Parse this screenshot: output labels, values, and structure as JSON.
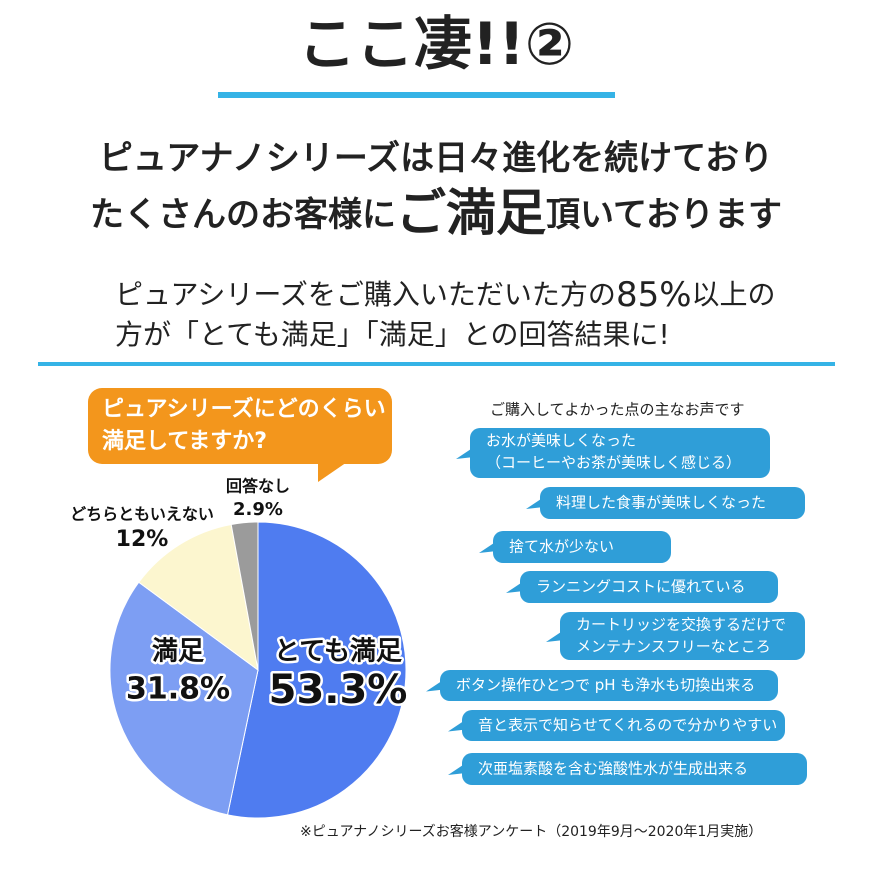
{
  "header": {
    "title": "ここ凄!!②",
    "lead_1": "ピュアナノシリーズは日々進化を続けており",
    "lead_2": [
      "たくさんのお客様に",
      "ご満足",
      "頂いております"
    ],
    "lead_3": [
      "ピュアシリーズをご購入いただいた方の",
      "85%",
      "以上の"
    ],
    "lead_4": "方が「とても満足」「満足」との回答結果に!"
  },
  "question": [
    "ピュアシリーズにどのくらい",
    "満足してますか?"
  ],
  "chart_data": {
    "type": "pie",
    "categories": [
      "とても満足",
      "満足",
      "どちらともいえない",
      "回答なし"
    ],
    "values": [
      53.3,
      31.8,
      12,
      2.9
    ],
    "value_labels": [
      "53.3%",
      "31.8%",
      "12%",
      "2.9%"
    ],
    "colors": [
      "#4f7cf0",
      "#7d9ef3",
      "#fcf6cf",
      "#9b9b9b"
    ]
  },
  "voices": {
    "heading": "ご購入してよかった点の主なお声です",
    "items": [
      [
        "お水が美味しくなった",
        "（コーヒーやお茶が美味しく感じる）"
      ],
      [
        "料理した食事が美味しくなった"
      ],
      [
        "捨て水が少ない"
      ],
      [
        "ランニングコストに優れている"
      ],
      [
        "カートリッジを交換するだけで",
        "メンテナンスフリーなところ"
      ],
      [
        "ボタン操作ひとつで pH も浄水も切換出来る"
      ],
      [
        "音と表示で知らせてくれるので分かりやすい"
      ],
      [
        "次亜塩素酸を含む強酸性水が生成出来る"
      ]
    ]
  },
  "footnote": "※ピュアナノシリーズお客様アンケート（2019年9月～2020年1月実施）"
}
